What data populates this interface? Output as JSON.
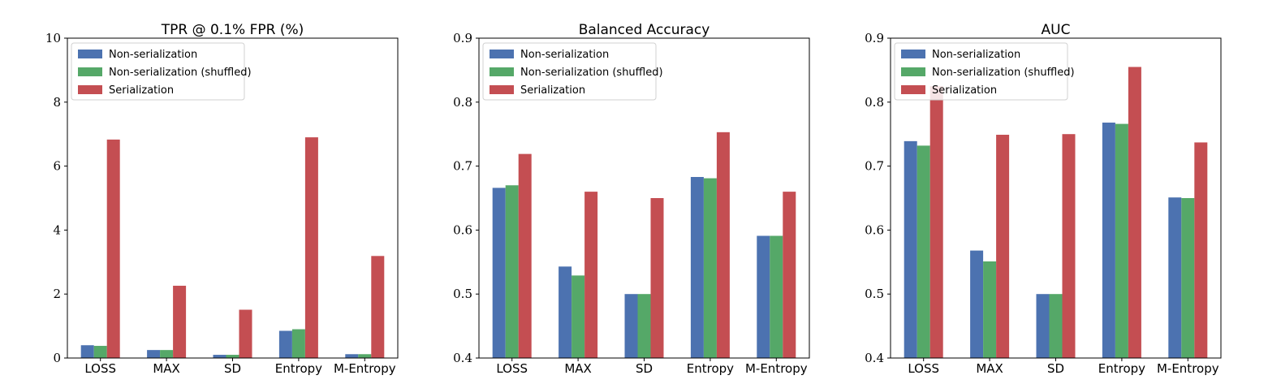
{
  "chart_data": [
    {
      "type": "bar",
      "title": "TPR @ 0.1% FPR (%)",
      "xlabel": "",
      "ylabel": "",
      "categories": [
        "LOSS",
        "MAX",
        "SD",
        "Entropy",
        "M-Entropy"
      ],
      "ylim": [
        0,
        10
      ],
      "yticks": [
        0,
        2,
        4,
        6,
        8,
        10
      ],
      "ytick_labels": [
        "0",
        "2",
        "4",
        "6",
        "8",
        "10"
      ],
      "legend_position": "top-left",
      "series": [
        {
          "name": "Non-serialization",
          "color": "#4c72b0",
          "values": [
            0.4,
            0.25,
            0.1,
            0.85,
            0.12
          ]
        },
        {
          "name": "Non-serialization (shuffled)",
          "color": "#55a868",
          "values": [
            0.38,
            0.25,
            0.1,
            0.9,
            0.12
          ]
        },
        {
          "name": "Serialization",
          "color": "#c44e52",
          "values": [
            6.83,
            2.26,
            1.51,
            6.9,
            3.19
          ]
        }
      ]
    },
    {
      "type": "bar",
      "title": "Balanced Accuracy",
      "xlabel": "",
      "ylabel": "",
      "categories": [
        "LOSS",
        "MAX",
        "SD",
        "Entropy",
        "M-Entropy"
      ],
      "ylim": [
        0.4,
        0.9
      ],
      "yticks": [
        0.4,
        0.5,
        0.6,
        0.7,
        0.8,
        0.9
      ],
      "ytick_labels": [
        "0.4",
        "0.5",
        "0.6",
        "0.7",
        "0.8",
        "0.9"
      ],
      "legend_position": "top-left",
      "series": [
        {
          "name": "Non-serialization",
          "color": "#4c72b0",
          "values": [
            0.666,
            0.543,
            0.5,
            0.683,
            0.591
          ]
        },
        {
          "name": "Non-serialization (shuffled)",
          "color": "#55a868",
          "values": [
            0.67,
            0.529,
            0.5,
            0.681,
            0.591
          ]
        },
        {
          "name": "Serialization",
          "color": "#c44e52",
          "values": [
            0.719,
            0.66,
            0.65,
            0.753,
            0.66
          ]
        }
      ]
    },
    {
      "type": "bar",
      "title": "AUC",
      "xlabel": "",
      "ylabel": "",
      "categories": [
        "LOSS",
        "MAX",
        "SD",
        "Entropy",
        "M-Entropy"
      ],
      "ylim": [
        0.4,
        0.9
      ],
      "yticks": [
        0.4,
        0.5,
        0.6,
        0.7,
        0.8,
        0.9
      ],
      "ytick_labels": [
        "0.4",
        "0.5",
        "0.6",
        "0.7",
        "0.8",
        "0.9"
      ],
      "legend_position": "top-left",
      "series": [
        {
          "name": "Non-serialization",
          "color": "#4c72b0",
          "values": [
            0.739,
            0.568,
            0.5,
            0.768,
            0.651
          ]
        },
        {
          "name": "Non-serialization (shuffled)",
          "color": "#55a868",
          "values": [
            0.732,
            0.551,
            0.5,
            0.766,
            0.65
          ]
        },
        {
          "name": "Serialization",
          "color": "#c44e52",
          "values": [
            0.825,
            0.749,
            0.75,
            0.855,
            0.737
          ]
        }
      ]
    }
  ]
}
